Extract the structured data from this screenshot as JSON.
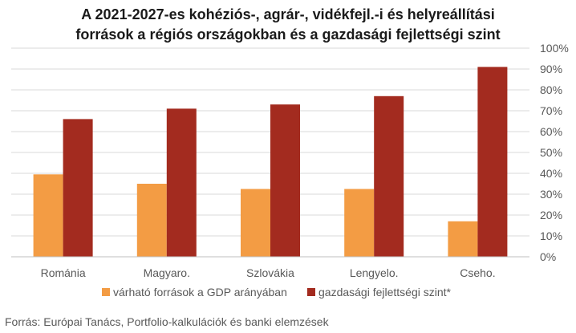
{
  "chart_data": {
    "type": "bar",
    "title_lines": [
      "A 2021-2027-es kohéziós-, agrár-, vidékfejl.-i és helyreállítási",
      "források a régiós országokban és a gazdasági fejlettségi szint"
    ],
    "categories": [
      "Románia",
      "Magyaro.",
      "Szlovákia",
      "Lengyelo.",
      "Cseho."
    ],
    "series": [
      {
        "name": "várható források a GDP arányában",
        "values": [
          39.5,
          35,
          32.5,
          32.5,
          17
        ],
        "color": "#f39c44"
      },
      {
        "name": "gazdasági fejlettségi szint*",
        "values": [
          66,
          71,
          73,
          77,
          91
        ],
        "color": "#a32b1f"
      }
    ],
    "ylim": [
      0,
      100
    ],
    "yticks": [
      "0%",
      "10%",
      "20%",
      "30%",
      "40%",
      "50%",
      "60%",
      "70%",
      "80%",
      "90%",
      "100%"
    ],
    "y_axis_side": "right",
    "grid": true,
    "legend_position": "bottom"
  },
  "source_text": "Forrás: Európai Tanács, Portfolio-kalkulációk és banki elemzések"
}
